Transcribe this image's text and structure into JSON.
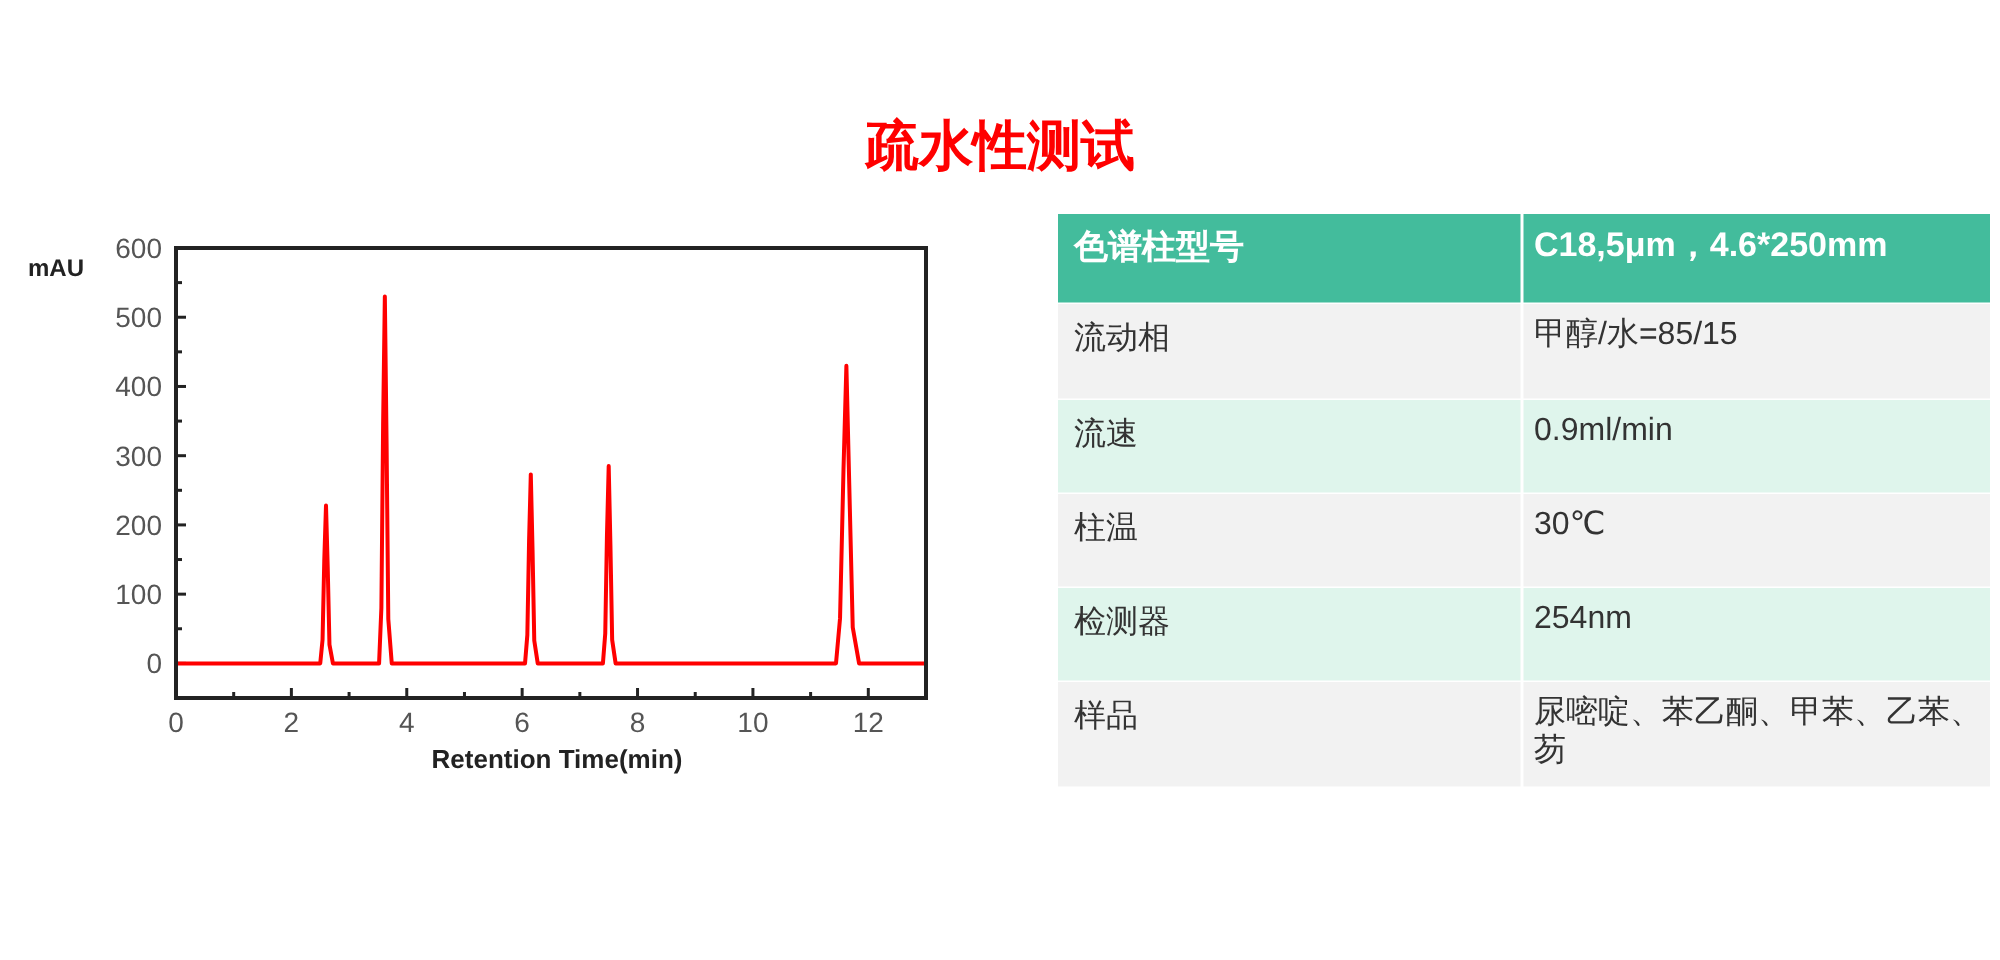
{
  "chart_data": [
    {
      "type": "line",
      "title": "疏水性测试",
      "xlabel": "Retention Time(min)",
      "ylabel": "mAU",
      "series": [
        {
          "color": "#ff0000",
          "x": [
            0,
            2.5,
            2.54,
            2.57,
            2.6,
            2.63,
            2.66,
            2.72,
            3.52,
            3.56,
            3.59,
            3.62,
            3.65,
            3.68,
            3.74,
            6.05,
            6.09,
            6.12,
            6.15,
            6.18,
            6.21,
            6.27,
            7.4,
            7.44,
            7.47,
            7.5,
            7.53,
            7.56,
            7.62,
            11.44,
            11.51,
            11.57,
            11.62,
            11.67,
            11.73,
            11.84,
            13
          ],
          "values": [
            0,
            0,
            34,
            148,
            228,
            137,
            27,
            0,
            0,
            80,
            345,
            530,
            318,
            64,
            0,
            0,
            41,
            177,
            273,
            164,
            33,
            0,
            0,
            43,
            185,
            285,
            171,
            34,
            0,
            0,
            65,
            280,
            430,
            258,
            52,
            0,
            0
          ]
        }
      ],
      "xlim": [
        0,
        13
      ],
      "ylim": [
        -50,
        600
      ],
      "xticks": [
        0,
        {
          "value": 1,
          "label": null
        },
        2,
        {
          "value": 3,
          "label": null
        },
        4,
        {
          "value": 5,
          "label": null
        },
        6,
        {
          "value": 7,
          "label": null
        },
        8,
        {
          "value": 9,
          "label": null
        },
        10,
        {
          "value": 11,
          "label": null
        },
        12
      ],
      "yticks": [
        {
          "value": -50,
          "label": null
        },
        0,
        {
          "value": 50,
          "label": null
        },
        100,
        {
          "value": 150,
          "label": null
        },
        200,
        {
          "value": 250,
          "label": null
        },
        300,
        {
          "value": 350,
          "label": null
        },
        400,
        {
          "value": 450,
          "label": null
        },
        500,
        {
          "value": 550,
          "label": null
        },
        600
      ],
      "grid": false,
      "marker": "none",
      "line_style": "solid"
    },
    {
      "type": "other",
      "annotations": [
        "色谱柱型号",
        "C18,5μm，4.6*250mm",
        "流动相",
        "甲醇/水=85/15",
        "流速",
        "0.9ml/min",
        "柱温",
        "30℃",
        "检测器",
        "254nm",
        "样品",
        "尿嘧啶、苯乙酮、甲苯、乙苯、芴"
      ]
    }
  ]
}
